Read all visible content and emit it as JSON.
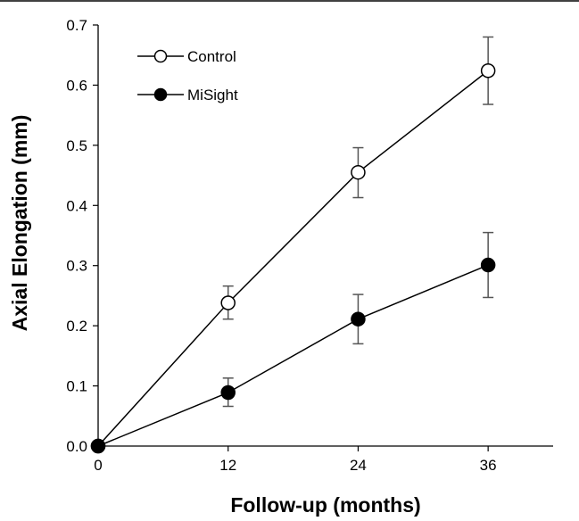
{
  "chart_data": {
    "type": "line",
    "xlabel": "Follow-up (months)",
    "ylabel": "Axial Elongation (mm)",
    "x": [
      0,
      12,
      24,
      36
    ],
    "xlim": [
      0,
      42
    ],
    "ylim": [
      0,
      0.7
    ],
    "x_ticks": [
      "0",
      "12",
      "24",
      "36"
    ],
    "y_ticks": [
      "0.0",
      "0.1",
      "0.2",
      "0.3",
      "0.4",
      "0.5",
      "0.6",
      "0.7"
    ],
    "grid": false,
    "legend_position": "top-left",
    "series": [
      {
        "name": "Control",
        "marker": "open-circle",
        "values": [
          0,
          0.238,
          0.455,
          0.624
        ],
        "error_low": [
          null,
          0.211,
          0.413,
          0.568
        ],
        "error_high": [
          null,
          0.266,
          0.496,
          0.68
        ]
      },
      {
        "name": "MiSight",
        "marker": "filled-circle",
        "values": [
          0,
          0.089,
          0.211,
          0.301
        ],
        "error_low": [
          null,
          0.066,
          0.17,
          0.247
        ],
        "error_high": [
          null,
          0.113,
          0.252,
          0.355
        ]
      }
    ],
    "colors": {
      "line": "#000000",
      "error_bar": "#555555",
      "open_fill": "#ffffff",
      "filled_fill": "#000000"
    }
  }
}
